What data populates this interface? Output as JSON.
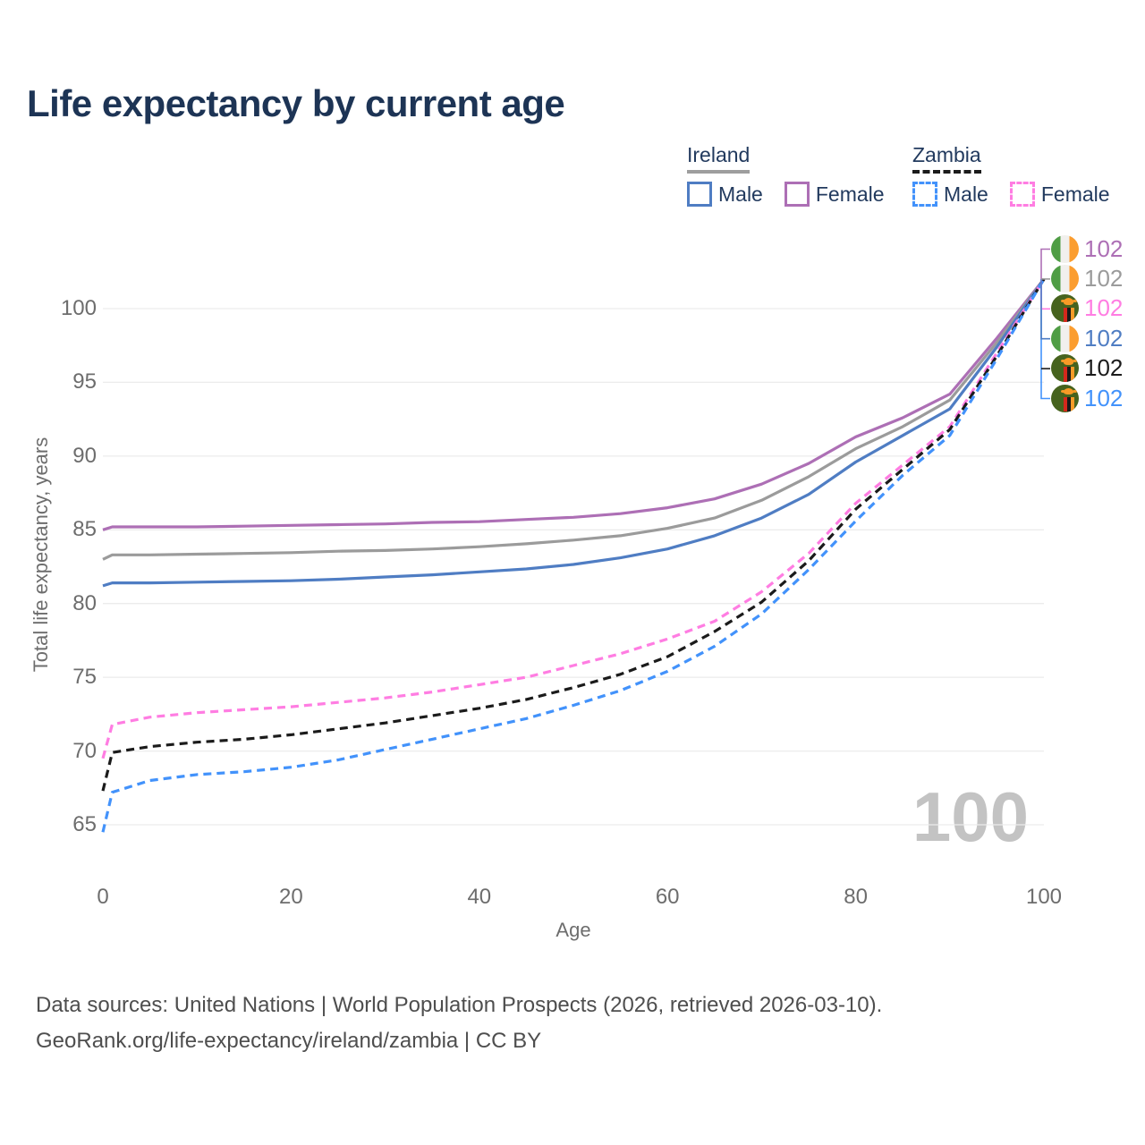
{
  "title": "Life expectancy by current age",
  "watermark": "100",
  "colors": {
    "title_text": "#1d3455",
    "legend_text": "#223a5e",
    "axis_text": "#6d6d6d",
    "grid": "#ececec",
    "watermark_text": "#c3c3c3",
    "footer_text": "#4e4e4e",
    "ireland_male": "#4f7dc3",
    "ireland_female": "#ad6fb5",
    "ireland_both": "#9b9b9b",
    "zambia_male": "#4292fb",
    "zambia_female": "#ff7de2",
    "zambia_both": "#1b1b1b"
  },
  "legend": {
    "groups": [
      {
        "label": "Ireland",
        "underline_style": "solid",
        "underline_color": "#9e9e9e",
        "items": [
          {
            "label": "Male",
            "color": "#4f7dc3",
            "dashed": false
          },
          {
            "label": "Female",
            "color": "#ad6fb5",
            "dashed": false
          }
        ]
      },
      {
        "label": "Zambia",
        "underline_style": "dashed",
        "underline_color": "#1b1b1b",
        "items": [
          {
            "label": "Male",
            "color": "#4292fb",
            "dashed": true
          },
          {
            "label": "Female",
            "color": "#ff7de2",
            "dashed": true
          }
        ]
      }
    ]
  },
  "end_labels": [
    {
      "value": "102",
      "flag": "ireland",
      "color": "#ad6fb5",
      "series": "Ireland Female"
    },
    {
      "value": "102",
      "flag": "ireland",
      "color": "#9b9b9b",
      "series": "Ireland Both sexes"
    },
    {
      "value": "102",
      "flag": "zambia",
      "color": "#ff7de2",
      "series": "Zambia Female"
    },
    {
      "value": "102",
      "flag": "ireland",
      "color": "#4f7dc3",
      "series": "Ireland Male"
    },
    {
      "value": "102",
      "flag": "zambia",
      "color": "#1b1b1b",
      "series": "Zambia Both sexes"
    },
    {
      "value": "102",
      "flag": "zambia",
      "color": "#4292fb",
      "series": "Zambia Male"
    }
  ],
  "footer": {
    "line1": "Data sources: United Nations | World Population Prospects (2026, retrieved 2026-03-10).",
    "line2": "GeoRank.org/life-expectancy/ireland/zambia | CC BY"
  },
  "chart_data": {
    "type": "line",
    "title": "Life expectancy by current age",
    "xlabel": "Age",
    "ylabel": "Total life expectancy, years",
    "xlim": [
      0,
      100
    ],
    "ylim": [
      63.5,
      103
    ],
    "x_ticks": [
      0,
      20,
      40,
      60,
      80,
      100
    ],
    "y_ticks": [
      100,
      95,
      90,
      85,
      80,
      75,
      70,
      65
    ],
    "grid": "horizontal",
    "legend_position": "top-right",
    "x": [
      0,
      1,
      5,
      10,
      15,
      20,
      25,
      30,
      35,
      40,
      45,
      50,
      55,
      60,
      65,
      70,
      75,
      80,
      85,
      90,
      95,
      100
    ],
    "series": [
      {
        "name": "Ireland Female",
        "country": "Ireland",
        "sex": "Female",
        "style": "solid",
        "color": "#ad6fb5",
        "end_label": "102",
        "values": [
          85.0,
          85.2,
          85.2,
          85.2,
          85.25,
          85.3,
          85.35,
          85.4,
          85.5,
          85.55,
          85.7,
          85.85,
          86.1,
          86.5,
          87.1,
          88.1,
          89.5,
          91.3,
          92.6,
          94.2,
          98.0,
          102
        ]
      },
      {
        "name": "Ireland Both sexes",
        "country": "Ireland",
        "sex": "Both",
        "style": "solid",
        "color": "#9b9b9b",
        "end_label": "102",
        "values": [
          83.0,
          83.3,
          83.3,
          83.35,
          83.4,
          83.45,
          83.55,
          83.6,
          83.7,
          83.85,
          84.05,
          84.3,
          84.6,
          85.1,
          85.8,
          87.0,
          88.6,
          90.5,
          92.0,
          93.8,
          97.7,
          102
        ]
      },
      {
        "name": "Ireland Male",
        "country": "Ireland",
        "sex": "Male",
        "style": "solid",
        "color": "#4f7dc3",
        "end_label": "102",
        "values": [
          81.2,
          81.4,
          81.4,
          81.45,
          81.5,
          81.55,
          81.65,
          81.8,
          81.95,
          82.15,
          82.35,
          82.65,
          83.1,
          83.7,
          84.6,
          85.8,
          87.4,
          89.6,
          91.4,
          93.2,
          97.4,
          102
        ]
      },
      {
        "name": "Zambia Female",
        "country": "Zambia",
        "sex": "Female",
        "style": "dashed",
        "color": "#ff7de2",
        "end_label": "102",
        "values": [
          69.5,
          71.8,
          72.3,
          72.6,
          72.8,
          73.0,
          73.3,
          73.6,
          74.0,
          74.5,
          75.0,
          75.8,
          76.6,
          77.6,
          78.8,
          80.8,
          83.4,
          86.8,
          89.4,
          92.0,
          97.0,
          102
        ]
      },
      {
        "name": "Zambia Both sexes",
        "country": "Zambia",
        "sex": "Both",
        "style": "dashed",
        "color": "#1b1b1b",
        "end_label": "102",
        "values": [
          67.3,
          69.9,
          70.3,
          70.6,
          70.8,
          71.1,
          71.5,
          71.9,
          72.4,
          72.9,
          73.5,
          74.3,
          75.2,
          76.4,
          78.1,
          80.1,
          82.9,
          86.4,
          89.1,
          91.8,
          96.8,
          102
        ]
      },
      {
        "name": "Zambia Male",
        "country": "Zambia",
        "sex": "Male",
        "style": "dashed",
        "color": "#4292fb",
        "end_label": "102",
        "values": [
          64.5,
          67.2,
          68.0,
          68.4,
          68.6,
          68.9,
          69.4,
          70.1,
          70.8,
          71.5,
          72.2,
          73.1,
          74.1,
          75.4,
          77.1,
          79.3,
          82.3,
          85.6,
          88.7,
          91.4,
          96.6,
          102
        ]
      }
    ]
  }
}
